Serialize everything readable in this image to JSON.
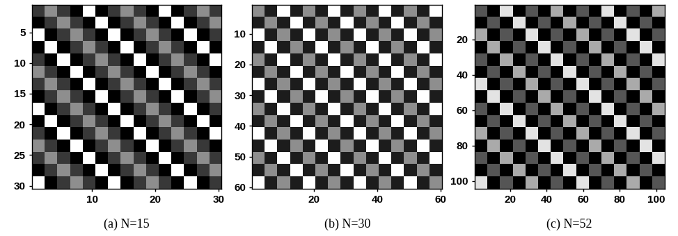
{
  "chart_data": [
    {
      "type": "heatmap",
      "xlabel": "(a) N=15",
      "xlim": [
        0.5,
        30.5
      ],
      "ylim": [
        30.5,
        0.5
      ],
      "xticks": [
        10,
        20,
        30
      ],
      "yticks": [
        5,
        10,
        15,
        20,
        25,
        30
      ],
      "cell_range": [
        0,
        9
      ],
      "cells": [
        [
          2,
          5,
          2,
          0,
          9,
          0,
          2,
          5,
          2,
          0,
          9,
          0,
          2,
          5,
          2
        ],
        [
          0,
          2,
          5,
          2,
          0,
          9,
          0,
          2,
          5,
          2,
          0,
          9,
          0,
          2,
          5
        ],
        [
          9,
          0,
          2,
          5,
          2,
          0,
          9,
          0,
          2,
          5,
          2,
          0,
          9,
          0,
          2
        ],
        [
          0,
          9,
          0,
          2,
          5,
          2,
          0,
          9,
          0,
          2,
          5,
          2,
          0,
          9,
          0
        ],
        [
          2,
          0,
          9,
          0,
          2,
          5,
          2,
          0,
          9,
          0,
          2,
          5,
          2,
          0,
          9
        ],
        [
          5,
          2,
          0,
          9,
          0,
          2,
          5,
          2,
          0,
          9,
          0,
          2,
          5,
          2,
          0
        ],
        [
          2,
          5,
          2,
          0,
          9,
          0,
          2,
          5,
          2,
          0,
          9,
          0,
          2,
          5,
          2
        ],
        [
          0,
          2,
          5,
          2,
          0,
          9,
          0,
          2,
          5,
          2,
          0,
          9,
          0,
          2,
          5
        ],
        [
          9,
          0,
          2,
          5,
          2,
          0,
          9,
          0,
          2,
          5,
          2,
          0,
          9,
          0,
          2
        ],
        [
          0,
          9,
          0,
          2,
          5,
          2,
          0,
          9,
          0,
          2,
          5,
          2,
          0,
          9,
          0
        ],
        [
          2,
          0,
          9,
          0,
          2,
          5,
          2,
          0,
          9,
          0,
          2,
          5,
          2,
          0,
          9
        ],
        [
          5,
          2,
          0,
          9,
          0,
          2,
          5,
          2,
          0,
          9,
          0,
          2,
          5,
          2,
          0
        ],
        [
          2,
          5,
          2,
          0,
          9,
          0,
          2,
          5,
          2,
          0,
          9,
          0,
          2,
          5,
          2
        ],
        [
          0,
          2,
          5,
          2,
          0,
          9,
          0,
          2,
          5,
          2,
          0,
          9,
          0,
          2,
          5
        ],
        [
          9,
          0,
          2,
          5,
          2,
          0,
          9,
          0,
          2,
          5,
          2,
          0,
          9,
          0,
          2
        ]
      ]
    },
    {
      "type": "heatmap",
      "xlabel": "(b) N=30",
      "xlim": [
        0.5,
        60.5
      ],
      "ylim": [
        60.5,
        0.5
      ],
      "xticks": [
        20,
        40,
        60
      ],
      "yticks": [
        10,
        20,
        30,
        40,
        50,
        60
      ],
      "cell_range": [
        0,
        9
      ],
      "cells": [
        [
          5,
          1,
          9,
          1,
          5,
          1,
          9,
          1,
          5,
          1,
          9,
          1,
          5,
          1,
          9
        ],
        [
          1,
          5,
          1,
          9,
          1,
          5,
          1,
          9,
          1,
          5,
          1,
          9,
          1,
          5,
          1
        ],
        [
          9,
          1,
          5,
          1,
          9,
          1,
          5,
          1,
          9,
          1,
          5,
          1,
          9,
          1,
          5
        ],
        [
          1,
          9,
          1,
          5,
          1,
          9,
          1,
          5,
          1,
          9,
          1,
          5,
          1,
          9,
          1
        ],
        [
          5,
          1,
          9,
          1,
          5,
          1,
          9,
          1,
          5,
          1,
          9,
          1,
          5,
          1,
          9
        ],
        [
          1,
          5,
          1,
          9,
          1,
          5,
          1,
          9,
          1,
          5,
          1,
          9,
          1,
          5,
          1
        ],
        [
          9,
          1,
          5,
          1,
          9,
          1,
          5,
          1,
          9,
          1,
          5,
          1,
          9,
          1,
          5
        ],
        [
          1,
          9,
          1,
          5,
          1,
          9,
          1,
          5,
          1,
          9,
          1,
          5,
          1,
          9,
          1
        ],
        [
          5,
          1,
          9,
          1,
          5,
          1,
          9,
          1,
          5,
          1,
          9,
          1,
          5,
          1,
          9
        ],
        [
          1,
          5,
          1,
          9,
          1,
          5,
          1,
          9,
          1,
          5,
          1,
          9,
          1,
          5,
          1
        ],
        [
          9,
          1,
          5,
          1,
          9,
          1,
          5,
          1,
          9,
          1,
          5,
          1,
          9,
          1,
          5
        ],
        [
          1,
          9,
          1,
          5,
          1,
          9,
          1,
          5,
          1,
          9,
          1,
          5,
          1,
          9,
          1
        ],
        [
          5,
          1,
          9,
          1,
          5,
          1,
          9,
          1,
          5,
          1,
          9,
          1,
          5,
          1,
          9
        ],
        [
          1,
          5,
          1,
          9,
          1,
          5,
          1,
          9,
          1,
          5,
          1,
          9,
          1,
          5,
          1
        ],
        [
          9,
          1,
          5,
          1,
          9,
          1,
          5,
          1,
          9,
          1,
          5,
          1,
          9,
          1,
          5
        ]
      ]
    },
    {
      "type": "heatmap",
      "xlabel": "(c) N=52",
      "xlim": [
        0.5,
        104.5
      ],
      "ylim": [
        104.5,
        0.5
      ],
      "xticks": [
        20,
        40,
        60,
        80,
        100
      ],
      "yticks": [
        20,
        40,
        60,
        80,
        100
      ],
      "cell_range": [
        0,
        9
      ],
      "cells": [
        [
          3,
          0,
          8,
          0,
          3,
          0,
          6,
          0,
          3,
          0,
          8,
          0,
          3,
          0,
          6
        ],
        [
          0,
          3,
          0,
          8,
          0,
          3,
          0,
          6,
          0,
          3,
          0,
          8,
          0,
          3,
          0
        ],
        [
          6,
          0,
          3,
          0,
          8,
          0,
          3,
          0,
          6,
          0,
          3,
          0,
          8,
          0,
          3
        ],
        [
          0,
          6,
          0,
          3,
          0,
          8,
          0,
          3,
          0,
          6,
          0,
          3,
          0,
          8,
          0
        ],
        [
          3,
          0,
          6,
          0,
          3,
          0,
          8,
          0,
          3,
          0,
          6,
          0,
          3,
          0,
          8
        ],
        [
          0,
          3,
          0,
          6,
          0,
          3,
          0,
          8,
          0,
          3,
          0,
          6,
          0,
          3,
          0
        ],
        [
          8,
          0,
          3,
          0,
          6,
          0,
          3,
          0,
          8,
          0,
          3,
          0,
          6,
          0,
          3
        ],
        [
          0,
          8,
          0,
          3,
          0,
          6,
          0,
          3,
          0,
          8,
          0,
          3,
          0,
          6,
          0
        ],
        [
          3,
          0,
          8,
          0,
          3,
          0,
          6,
          0,
          3,
          0,
          8,
          0,
          3,
          0,
          6
        ],
        [
          0,
          3,
          0,
          8,
          0,
          3,
          0,
          6,
          0,
          3,
          0,
          8,
          0,
          3,
          0
        ],
        [
          6,
          0,
          3,
          0,
          8,
          0,
          3,
          0,
          6,
          0,
          3,
          0,
          8,
          0,
          3
        ],
        [
          0,
          6,
          0,
          3,
          0,
          8,
          0,
          3,
          0,
          6,
          0,
          3,
          0,
          8,
          0
        ],
        [
          3,
          0,
          6,
          0,
          3,
          0,
          8,
          0,
          3,
          0,
          6,
          0,
          3,
          0,
          8
        ],
        [
          0,
          3,
          0,
          6,
          0,
          3,
          0,
          8,
          0,
          3,
          0,
          6,
          0,
          3,
          0
        ],
        [
          8,
          0,
          3,
          0,
          6,
          0,
          3,
          0,
          8,
          0,
          3,
          0,
          6,
          0,
          3
        ]
      ]
    }
  ]
}
